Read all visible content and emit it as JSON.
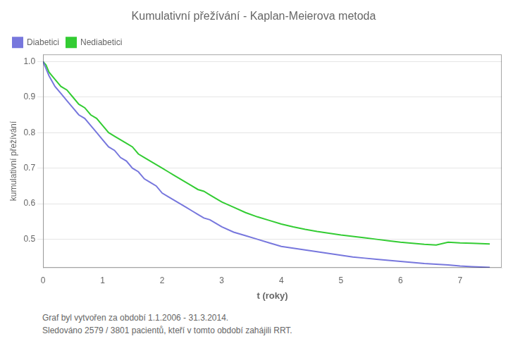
{
  "chart_data": {
    "type": "line",
    "title": "Kumulativní přežívání - Kaplan-Meierova metoda",
    "x_label": "t (roky)",
    "y_label": "kumulativní přežívání",
    "annotations": [
      "Graf byl vytvořen za období 1.1.2006 - 31.3.2014.",
      "Sledováno 2579 / 3801 pacientů, kteří v tomto období zahájili RRT."
    ],
    "xlim": [
      0,
      7.7
    ],
    "ylim": [
      0.42,
      1.02
    ],
    "xticks": [
      0,
      1,
      2,
      3,
      4,
      5,
      6,
      7
    ],
    "yticks": [
      0.5,
      0.6,
      0.7,
      0.8,
      0.9,
      {
        "value": 1,
        "label": "1.0"
      }
    ],
    "grid": "y",
    "legend": "upper left",
    "series": [
      {
        "name": "Diabetici",
        "color": "#7777dd",
        "x": [
          0,
          0.05,
          0.1,
          0.2,
          0.3,
          0.4,
          0.5,
          0.6,
          0.7,
          0.8,
          0.9,
          1.0,
          1.1,
          1.2,
          1.3,
          1.4,
          1.5,
          1.6,
          1.7,
          1.8,
          1.9,
          2.0,
          2.1,
          2.2,
          2.3,
          2.4,
          2.5,
          2.6,
          2.7,
          2.8,
          2.9,
          3.0,
          3.2,
          3.4,
          3.6,
          3.8,
          4.0,
          4.2,
          4.4,
          4.6,
          4.8,
          5.0,
          5.2,
          5.4,
          5.6,
          5.8,
          6.0,
          6.2,
          6.4,
          6.6,
          6.8,
          7.0,
          7.2,
          7.5
        ],
        "values": [
          1.0,
          0.98,
          0.96,
          0.93,
          0.91,
          0.89,
          0.87,
          0.85,
          0.84,
          0.82,
          0.8,
          0.78,
          0.76,
          0.75,
          0.73,
          0.72,
          0.7,
          0.69,
          0.67,
          0.66,
          0.65,
          0.63,
          0.62,
          0.61,
          0.6,
          0.59,
          0.58,
          0.57,
          0.56,
          0.555,
          0.545,
          0.535,
          0.52,
          0.51,
          0.5,
          0.49,
          0.48,
          0.475,
          0.47,
          0.465,
          0.46,
          0.455,
          0.45,
          0.447,
          0.444,
          0.441,
          0.438,
          0.435,
          0.432,
          0.43,
          0.428,
          0.425,
          0.423,
          0.421
        ]
      },
      {
        "name": "Nediabetici",
        "color": "#33cc33",
        "x": [
          0,
          0.05,
          0.1,
          0.2,
          0.3,
          0.4,
          0.5,
          0.6,
          0.7,
          0.8,
          0.9,
          1.0,
          1.1,
          1.2,
          1.3,
          1.4,
          1.5,
          1.6,
          1.7,
          1.8,
          1.9,
          2.0,
          2.1,
          2.2,
          2.3,
          2.4,
          2.5,
          2.6,
          2.7,
          2.8,
          2.9,
          3.0,
          3.2,
          3.4,
          3.6,
          3.8,
          4.0,
          4.2,
          4.4,
          4.6,
          4.8,
          5.0,
          5.2,
          5.4,
          5.6,
          5.8,
          6.0,
          6.2,
          6.4,
          6.6,
          6.8,
          7.0,
          7.2,
          7.5
        ],
        "values": [
          1.0,
          0.99,
          0.97,
          0.95,
          0.93,
          0.92,
          0.9,
          0.88,
          0.87,
          0.85,
          0.84,
          0.82,
          0.8,
          0.79,
          0.78,
          0.77,
          0.76,
          0.74,
          0.73,
          0.72,
          0.71,
          0.7,
          0.69,
          0.68,
          0.67,
          0.66,
          0.65,
          0.64,
          0.635,
          0.625,
          0.615,
          0.605,
          0.59,
          0.575,
          0.563,
          0.553,
          0.543,
          0.535,
          0.528,
          0.522,
          0.517,
          0.512,
          0.508,
          0.504,
          0.5,
          0.496,
          0.492,
          0.489,
          0.486,
          0.484,
          0.492,
          0.49,
          0.489,
          0.487
        ]
      }
    ]
  }
}
